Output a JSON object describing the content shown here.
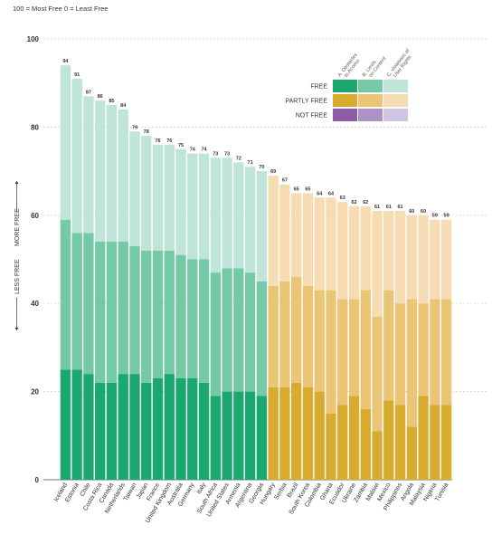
{
  "scale_note": "100 = Most Free    0 = Least Free",
  "chart_data": {
    "type": "bar",
    "stacked": true,
    "ylim": [
      0,
      100
    ],
    "yticks": [
      0,
      20,
      40,
      60,
      80,
      100
    ],
    "grid": true,
    "y_arrow_labels": {
      "up": "MORE FREE",
      "down": "LESS FREE"
    },
    "categories": [
      "Iceland",
      "Estonia",
      "Chile",
      "Costa Rica",
      "Canada",
      "Netherlands",
      "Taiwan",
      "Japan",
      "France",
      "United Kingdom",
      "Australia",
      "Germany",
      "Italy",
      "South Africa",
      "United States",
      "Armenia",
      "Argentina",
      "Georgia",
      "Hungary",
      "Serbia",
      "Brazil",
      "South Korea",
      "Colombia",
      "Ghana",
      "Ecuador",
      "Ukraine",
      "Zambia",
      "Malawi",
      "Mexico",
      "Philippines",
      "Angola",
      "Malaysia",
      "Nigeria",
      "Tunisia"
    ],
    "status": [
      "free",
      "free",
      "free",
      "free",
      "free",
      "free",
      "free",
      "free",
      "free",
      "free",
      "free",
      "free",
      "free",
      "free",
      "free",
      "free",
      "free",
      "free",
      "partly",
      "partly",
      "partly",
      "partly",
      "partly",
      "partly",
      "partly",
      "partly",
      "partly",
      "partly",
      "partly",
      "partly",
      "partly",
      "partly",
      "partly",
      "partly"
    ],
    "totals": [
      94,
      91,
      87,
      86,
      85,
      84,
      79,
      78,
      76,
      76,
      75,
      74,
      74,
      73,
      73,
      72,
      71,
      70,
      69,
      67,
      65,
      65,
      64,
      64,
      63,
      62,
      62,
      61,
      61,
      61,
      60,
      60,
      59,
      59
    ],
    "series": [
      {
        "name": "A. Obstacles to Access",
        "values": [
          25,
          25,
          24,
          22,
          22,
          24,
          24,
          22,
          23,
          24,
          23,
          23,
          22,
          19,
          20,
          20,
          20,
          19,
          21,
          21,
          22,
          21,
          20,
          15,
          17,
          19,
          16,
          11,
          18,
          17,
          12,
          19,
          17,
          17
        ]
      },
      {
        "name": "B. Limits on Content",
        "values": [
          34,
          31,
          32,
          32,
          32,
          30,
          29,
          30,
          29,
          28,
          28,
          27,
          28,
          28,
          28,
          28,
          27,
          26,
          23,
          24,
          24,
          23,
          23,
          28,
          24,
          22,
          27,
          26,
          25,
          23,
          29,
          21,
          24,
          24
        ]
      },
      {
        "name": "C. Violations of User Rights",
        "values": [
          35,
          35,
          31,
          32,
          31,
          30,
          26,
          26,
          24,
          24,
          24,
          24,
          24,
          26,
          25,
          24,
          24,
          25,
          25,
          22,
          19,
          21,
          21,
          21,
          22,
          21,
          19,
          24,
          18,
          21,
          19,
          20,
          18,
          18
        ]
      }
    ],
    "legend": {
      "position": "top-right",
      "rows": [
        "FREE",
        "PARTLY FREE",
        "NOT FREE"
      ],
      "columns": [
        "A. Obstacles to Access",
        "B. Limits on Content",
        "C. Violations of User Rights"
      ],
      "colors": {
        "free": [
          "#1aa870",
          "#76c9a6",
          "#bfe5da"
        ],
        "partly": [
          "#d8aa2e",
          "#ebc576",
          "#f6dcb2"
        ],
        "not": [
          "#8e5ca6",
          "#ae92c6",
          "#cfc6e2"
        ]
      }
    }
  }
}
